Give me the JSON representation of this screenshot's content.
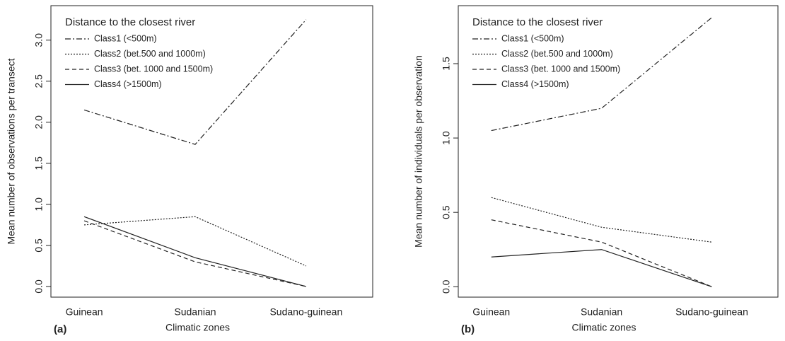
{
  "chart_data": [
    {
      "type": "line",
      "panel_label": "(a)",
      "x_label": "Climatic zones",
      "y_label": "Mean number of observations per transect",
      "legend_title": "Distance to the closest river",
      "categories": [
        "Guinean",
        "Sudanian",
        "Sudano-guinean"
      ],
      "ylim": [
        -0.13,
        3.42
      ],
      "yticks": [
        {
          "value": 0,
          "label": "0.0"
        },
        {
          "value": 0.5,
          "label": "0.5"
        },
        {
          "value": 1,
          "label": "1.0"
        },
        {
          "value": 1.5,
          "label": "1.5"
        },
        {
          "value": 2,
          "label": "2.0"
        },
        {
          "value": 2.5,
          "label": "2.5"
        },
        {
          "value": 3,
          "label": "3.0"
        }
      ],
      "series": [
        {
          "name": "Class1 (<500m)",
          "color": "#222222",
          "dash": "dashdot",
          "values": [
            2.15,
            1.73,
            3.25
          ]
        },
        {
          "name": "Class2 (bet.500 and 1000m)",
          "color": "#222222",
          "dash": "dotted",
          "values": [
            0.75,
            0.85,
            0.25
          ]
        },
        {
          "name": "Class3 (bet. 1000 and 1500m)",
          "color": "#222222",
          "dash": "dashed",
          "values": [
            0.8,
            0.3,
            0.0
          ]
        },
        {
          "name": "Class4 (>1500m)",
          "color": "#222222",
          "dash": "solid",
          "values": [
            0.85,
            0.35,
            0.0
          ]
        }
      ]
    },
    {
      "type": "line",
      "panel_label": "(b)",
      "x_label": "Climatic zones",
      "y_label": "Mean number of individuals per observation",
      "legend_title": "Distance to the closest river",
      "categories": [
        "Guinean",
        "Sudanian",
        "Sudano-guinean"
      ],
      "ylim": [
        -0.07,
        1.89
      ],
      "yticks": [
        {
          "value": 0,
          "label": "0.0"
        },
        {
          "value": 0.5,
          "label": "0.5"
        },
        {
          "value": 1,
          "label": "1.0"
        },
        {
          "value": 1.5,
          "label": "1.5"
        }
      ],
      "series": [
        {
          "name": "Class1 (<500m)",
          "color": "#222222",
          "dash": "dashdot",
          "values": [
            1.05,
            1.2,
            1.81
          ]
        },
        {
          "name": "Class2 (bet.500 and 1000m)",
          "color": "#222222",
          "dash": "dotted",
          "values": [
            0.6,
            0.4,
            0.3
          ]
        },
        {
          "name": "Class3 (bet. 1000 and 1500m)",
          "color": "#222222",
          "dash": "dashed",
          "values": [
            0.45,
            0.3,
            0.0
          ]
        },
        {
          "name": "Class4 (>1500m)",
          "color": "#222222",
          "dash": "solid",
          "values": [
            0.2,
            0.25,
            0.0
          ]
        }
      ]
    }
  ]
}
